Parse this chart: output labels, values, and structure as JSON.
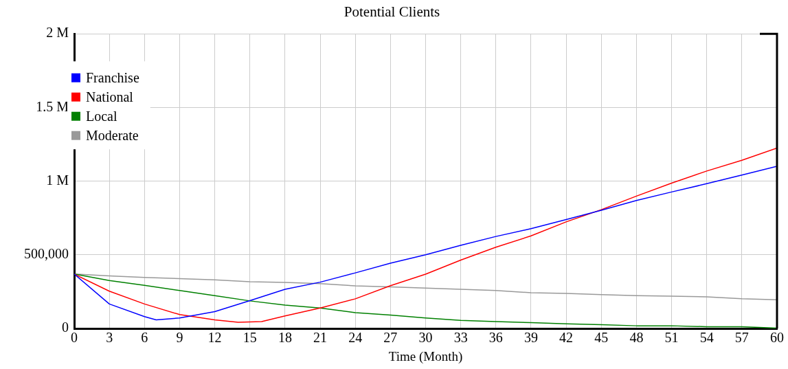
{
  "chart_data": {
    "type": "line",
    "title": "Potential Clients",
    "xlabel": "Time (Month)",
    "xlim": [
      0,
      60
    ],
    "xticks": [
      0,
      3,
      6,
      9,
      12,
      15,
      18,
      21,
      24,
      27,
      30,
      33,
      36,
      39,
      42,
      45,
      48,
      51,
      54,
      57,
      60
    ],
    "ylim": [
      0,
      2000000
    ],
    "yticks": [
      0,
      {
        "value": 500000,
        "label": "500,000"
      },
      {
        "value": 1000000,
        "label": "1 M"
      },
      {
        "value": 1500000,
        "label": "1.5 M"
      },
      {
        "value": 2000000,
        "label": "2 M"
      }
    ],
    "grid": true,
    "legend": "top left",
    "marker": "none",
    "line_style": "solid",
    "series": [
      {
        "name": "Franchise",
        "color": "#0000ff",
        "x": [
          0,
          3,
          6,
          7,
          9,
          12,
          15,
          18,
          21,
          24,
          27,
          30,
          33,
          36,
          39,
          42,
          45,
          48,
          51,
          54,
          57,
          60
        ],
        "values": [
          370000,
          167000,
          81000,
          59000,
          72000,
          115000,
          190000,
          267000,
          315000,
          378000,
          444000,
          501000,
          565000,
          625000,
          678000,
          740000,
          803000,
          869000,
          927000,
          983000,
          1042000,
          1101000
        ]
      },
      {
        "name": "National",
        "color": "#ff0000",
        "x": [
          0,
          3,
          6,
          9,
          12,
          14,
          16,
          18,
          21,
          24,
          27,
          30,
          33,
          36,
          39,
          42,
          45,
          48,
          51,
          54,
          57,
          60
        ],
        "values": [
          370000,
          254000,
          167000,
          95000,
          59000,
          43000,
          48000,
          86000,
          140000,
          202000,
          291000,
          369000,
          465000,
          552000,
          629000,
          724000,
          807000,
          899000,
          987000,
          1069000,
          1142000,
          1225000
        ]
      },
      {
        "name": "Local",
        "color": "#008000",
        "x": [
          0,
          3,
          6,
          9,
          12,
          15,
          18,
          21,
          24,
          27,
          30,
          33,
          36,
          39,
          42,
          45,
          48,
          51,
          54,
          57,
          60
        ],
        "values": [
          370000,
          326000,
          294000,
          258000,
          223000,
          188000,
          159000,
          140000,
          108000,
          92000,
          72000,
          56000,
          48000,
          40000,
          32000,
          27000,
          19000,
          19000,
          13000,
          13000,
          3000
        ]
      },
      {
        "name": "Moderate",
        "color": "#999999",
        "x": [
          0,
          3,
          6,
          9,
          12,
          15,
          18,
          21,
          24,
          27,
          30,
          33,
          36,
          39,
          42,
          45,
          48,
          51,
          54,
          57,
          60
        ],
        "values": [
          370000,
          358000,
          347000,
          339000,
          331000,
          318000,
          313000,
          305000,
          290000,
          283000,
          275000,
          267000,
          259000,
          243000,
          239000,
          231000,
          223000,
          220000,
          215000,
          202000,
          196000
        ]
      }
    ]
  }
}
